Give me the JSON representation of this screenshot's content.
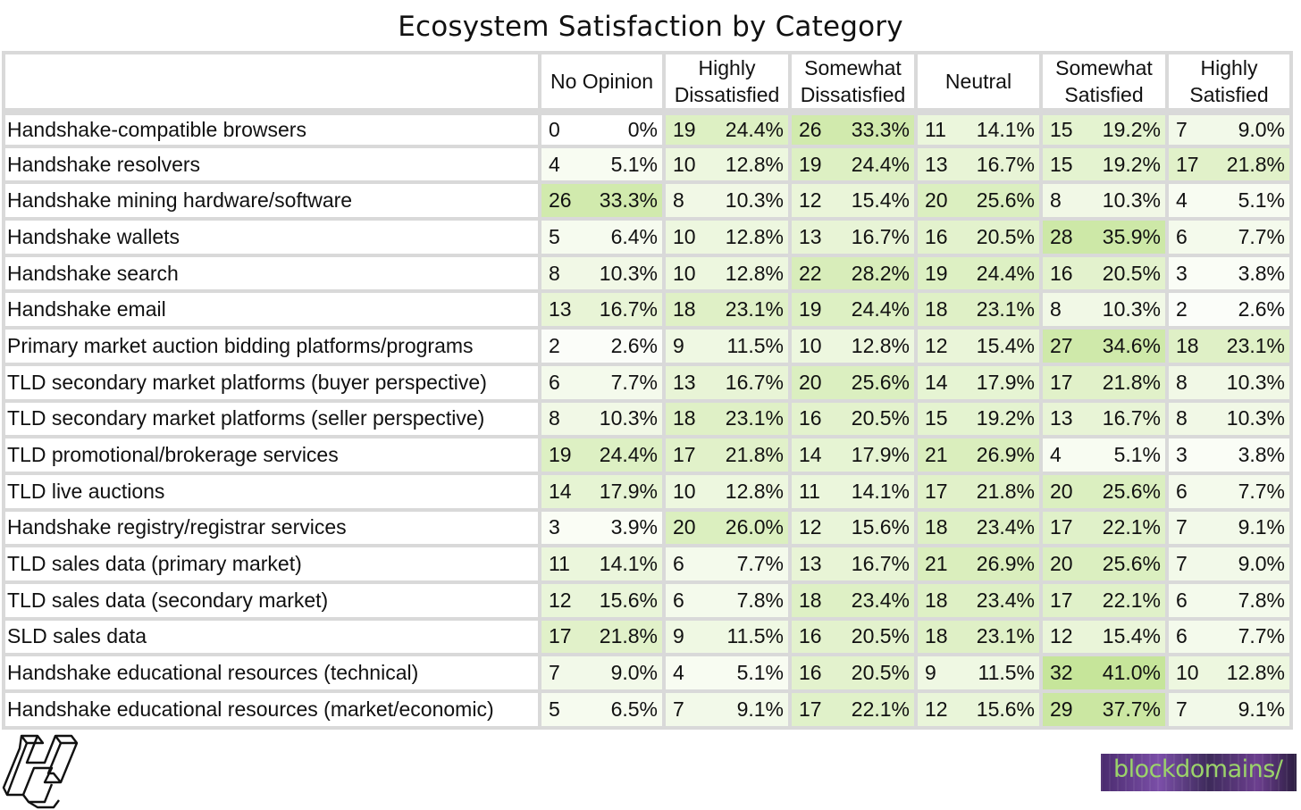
{
  "chart_data": {
    "type": "table",
    "title": "Ecosystem Satisfaction by Category",
    "columns": [
      "No Opinion",
      "Highly Dissatisfied",
      "Somewhat Dissatisfied",
      "Neutral",
      "Somewhat Satisfied",
      "Highly Satisfied"
    ],
    "column_header_lines": [
      [
        "No Opinion"
      ],
      [
        "Highly",
        "Dissatisfied"
      ],
      [
        "Somewhat",
        "Dissatisfied"
      ],
      [
        "Neutral"
      ],
      [
        "Somewhat",
        "Satisfied"
      ],
      [
        "Highly",
        "Satisfied"
      ]
    ],
    "rows": [
      {
        "label": "Handshake-compatible browsers",
        "counts": [
          "0",
          "19",
          "26",
          "11",
          "15",
          "7"
        ],
        "percents": [
          "0%",
          "24.4%",
          "33.3%",
          "14.1%",
          "19.2%",
          "9.0%"
        ]
      },
      {
        "label": "Handshake resolvers",
        "counts": [
          "4",
          "10",
          "19",
          "13",
          "15",
          "17"
        ],
        "percents": [
          "5.1%",
          "12.8%",
          "24.4%",
          "16.7%",
          "19.2%",
          "21.8%"
        ]
      },
      {
        "label": "Handshake mining hardware/software",
        "counts": [
          "26",
          "8",
          "12",
          "20",
          "8",
          "4"
        ],
        "percents": [
          "33.3%",
          "10.3%",
          "15.4%",
          "25.6%",
          "10.3%",
          "5.1%"
        ]
      },
      {
        "label": "Handshake wallets",
        "counts": [
          "5",
          "10",
          "13",
          "16",
          "28",
          "6"
        ],
        "percents": [
          "6.4%",
          "12.8%",
          "16.7%",
          "20.5%",
          "35.9%",
          "7.7%"
        ]
      },
      {
        "label": "Handshake search",
        "counts": [
          "8",
          "10",
          "22",
          "19",
          "16",
          "3"
        ],
        "percents": [
          "10.3%",
          "12.8%",
          "28.2%",
          "24.4%",
          "20.5%",
          "3.8%"
        ]
      },
      {
        "label": "Handshake email",
        "counts": [
          "13",
          "18",
          "19",
          "18",
          "8",
          "2"
        ],
        "percents": [
          "16.7%",
          "23.1%",
          "24.4%",
          "23.1%",
          "10.3%",
          "2.6%"
        ]
      },
      {
        "label": "Primary market auction bidding platforms/programs",
        "counts": [
          "2",
          "9",
          "10",
          "12",
          "27",
          "18"
        ],
        "percents": [
          "2.6%",
          "11.5%",
          "12.8%",
          "15.4%",
          "34.6%",
          "23.1%"
        ]
      },
      {
        "label": "TLD secondary market platforms (buyer perspective)",
        "counts": [
          "6",
          "13",
          "20",
          "14",
          "17",
          "8"
        ],
        "percents": [
          "7.7%",
          "16.7%",
          "25.6%",
          "17.9%",
          "21.8%",
          "10.3%"
        ]
      },
      {
        "label": "TLD secondary market platforms (seller perspective)",
        "counts": [
          "8",
          "18",
          "16",
          "15",
          "13",
          "8"
        ],
        "percents": [
          "10.3%",
          "23.1%",
          "20.5%",
          "19.2%",
          "16.7%",
          "10.3%"
        ]
      },
      {
        "label": "TLD promotional/brokerage services",
        "counts": [
          "19",
          "17",
          "14",
          "21",
          "4",
          "3"
        ],
        "percents": [
          "24.4%",
          "21.8%",
          "17.9%",
          "26.9%",
          "5.1%",
          "3.8%"
        ]
      },
      {
        "label": "TLD live auctions",
        "counts": [
          "14",
          "10",
          "11",
          "17",
          "20",
          "6"
        ],
        "percents": [
          "17.9%",
          "12.8%",
          "14.1%",
          "21.8%",
          "25.6%",
          "7.7%"
        ]
      },
      {
        "label": "Handshake registry/registrar services",
        "counts": [
          "3",
          "20",
          "12",
          "18",
          "17",
          "7"
        ],
        "percents": [
          "3.9%",
          "26.0%",
          "15.6%",
          "23.4%",
          "22.1%",
          "9.1%"
        ]
      },
      {
        "label": "TLD sales data (primary market)",
        "counts": [
          "11",
          "6",
          "13",
          "21",
          "20",
          "7"
        ],
        "percents": [
          "14.1%",
          "7.7%",
          "16.7%",
          "26.9%",
          "25.6%",
          "9.0%"
        ]
      },
      {
        "label": "TLD sales data (secondary market)",
        "counts": [
          "12",
          "6",
          "18",
          "18",
          "17",
          "6"
        ],
        "percents": [
          "15.6%",
          "7.8%",
          "23.4%",
          "23.4%",
          "22.1%",
          "7.8%"
        ]
      },
      {
        "label": "SLD sales data",
        "counts": [
          "17",
          "9",
          "16",
          "18",
          "12",
          "6"
        ],
        "percents": [
          "21.8%",
          "11.5%",
          "20.5%",
          "23.1%",
          "15.4%",
          "7.7%"
        ]
      },
      {
        "label": "Handshake educational resources (technical)",
        "counts": [
          "7",
          "4",
          "16",
          "9",
          "32",
          "10"
        ],
        "percents": [
          "9.0%",
          "5.1%",
          "20.5%",
          "11.5%",
          "41.0%",
          "12.8%"
        ]
      },
      {
        "label": "Handshake educational resources (market/economic)",
        "counts": [
          "5",
          "7",
          "17",
          "12",
          "29",
          "7"
        ],
        "percents": [
          "6.5%",
          "9.1%",
          "22.1%",
          "15.6%",
          "37.7%",
          "9.1%"
        ]
      }
    ],
    "heatmap_color_low": "#ffffff",
    "heatmap_color_high": "#c6e59a",
    "heatmap_max_value": 41.0
  },
  "branding": {
    "right_logo_text": "blockdomains/"
  }
}
